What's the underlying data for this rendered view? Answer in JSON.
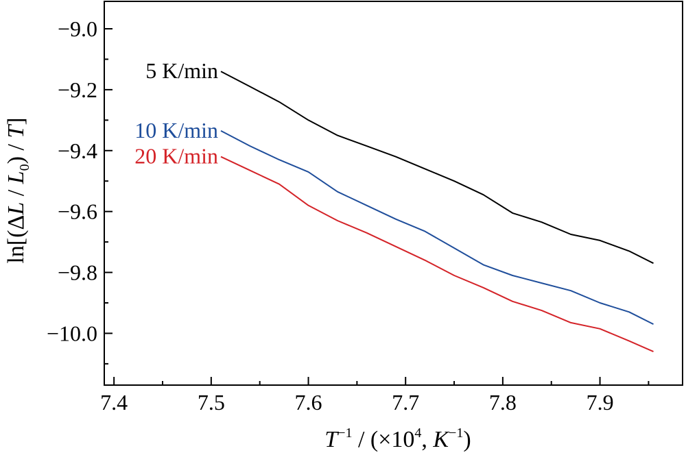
{
  "chart_data": {
    "type": "line",
    "xlabel": {
      "base": "T",
      "sup1": "−1",
      "mid": " / (×10",
      "sup2": "4",
      "mid2": ", ",
      "unitBase": "K",
      "sup3": "−1",
      "end": ")"
    },
    "ylabel": {
      "pre": "ln[(Δ",
      "L1": "L",
      "mid": " / ",
      "L2": "L",
      "sub": "0",
      "post": ") / ",
      "T": "T",
      "end": "]"
    },
    "xlim": [
      7.39,
      7.985
    ],
    "ylim": [
      -10.17,
      -8.91
    ],
    "xticks": [
      7.4,
      7.5,
      7.6,
      7.7,
      7.8,
      7.9
    ],
    "xtick_labels": [
      "7.4",
      "7.5",
      "7.6",
      "7.7",
      "7.8",
      "7.9"
    ],
    "yticks": [
      -9.0,
      -9.2,
      -9.4,
      -9.6,
      -9.8,
      -10.0
    ],
    "ytick_labels": [
      "−9.0",
      "−9.2",
      "−9.4",
      "−9.6",
      "−9.8",
      "−10.0"
    ],
    "grid": false,
    "legend": "inline labels at left ends of lines",
    "series": [
      {
        "name": "5 K/min",
        "color": "#000000",
        "x": [
          7.51,
          7.54,
          7.57,
          7.6,
          7.63,
          7.66,
          7.69,
          7.72,
          7.75,
          7.78,
          7.81,
          7.84,
          7.87,
          7.9,
          7.93,
          7.955
        ],
        "y": [
          -9.14,
          -9.19,
          -9.24,
          -9.3,
          -9.35,
          -9.385,
          -9.42,
          -9.46,
          -9.5,
          -9.545,
          -9.605,
          -9.635,
          -9.675,
          -9.695,
          -9.73,
          -9.77
        ]
      },
      {
        "name": "10 K/min",
        "color": "#1f4e9b",
        "x": [
          7.51,
          7.54,
          7.57,
          7.6,
          7.63,
          7.66,
          7.69,
          7.72,
          7.75,
          7.78,
          7.81,
          7.84,
          7.87,
          7.9,
          7.93,
          7.955
        ],
        "y": [
          -9.335,
          -9.385,
          -9.43,
          -9.47,
          -9.535,
          -9.58,
          -9.625,
          -9.665,
          -9.72,
          -9.775,
          -9.81,
          -9.835,
          -9.86,
          -9.9,
          -9.93,
          -9.97
        ]
      },
      {
        "name": "20 K/min",
        "color": "#d42328",
        "x": [
          7.51,
          7.54,
          7.57,
          7.6,
          7.63,
          7.66,
          7.69,
          7.72,
          7.75,
          7.78,
          7.81,
          7.84,
          7.87,
          7.9,
          7.93,
          7.955
        ],
        "y": [
          -9.42,
          -9.465,
          -9.51,
          -9.58,
          -9.63,
          -9.67,
          -9.715,
          -9.76,
          -9.81,
          -9.85,
          -9.895,
          -9.925,
          -9.965,
          -9.985,
          -10.025,
          -10.06
        ]
      }
    ]
  }
}
